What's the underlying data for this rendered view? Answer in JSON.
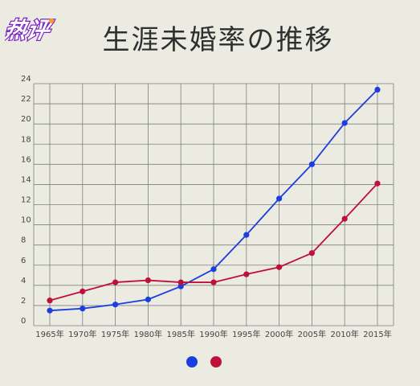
{
  "logo": {
    "text": "热评"
  },
  "title": "生涯未婚率の推移",
  "chart_data": {
    "type": "line",
    "title": "生涯未婚率の推移",
    "categories": [
      "1965年",
      "1970年",
      "1975年",
      "1980年",
      "1985年",
      "1990年",
      "1995年",
      "2000年",
      "2005年",
      "2010年",
      "2015年"
    ],
    "series": [
      {
        "color": "#1a3ee0",
        "values": [
          1.5,
          1.7,
          2.1,
          2.6,
          3.9,
          5.6,
          9.0,
          12.6,
          16.0,
          20.1,
          23.4
        ]
      },
      {
        "color": "#c0103a",
        "values": [
          2.5,
          3.4,
          4.3,
          4.5,
          4.3,
          4.3,
          5.1,
          5.8,
          7.2,
          10.6,
          14.1
        ]
      }
    ],
    "ylim": [
      0,
      24
    ],
    "yticks": [
      0,
      2,
      4,
      6,
      8,
      10,
      12,
      14,
      16,
      18,
      20,
      22,
      24
    ],
    "grid": true,
    "legend": "bottom-center"
  }
}
